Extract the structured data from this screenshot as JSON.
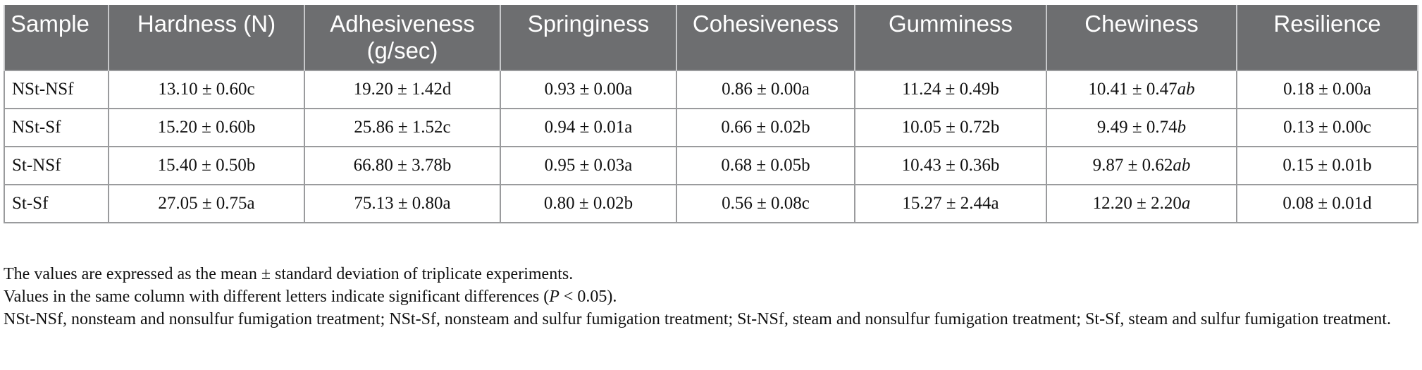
{
  "table": {
    "headers": [
      "Sample",
      "Hardness (N)",
      "Adhesiveness (g/sec)",
      "Springiness",
      "Cohesiveness",
      "Gumminess",
      "Chewiness",
      "Resilience"
    ],
    "rows": [
      {
        "sample": "NSt-NSf",
        "hardness": "13.10 ± 0.60c",
        "adhesiveness": "19.20 ± 1.42d",
        "springiness": "0.93 ± 0.00a",
        "cohesiveness": "0.86 ± 0.00a",
        "gumminess": "11.24 ± 0.49b",
        "chewiness_value": "10.41 ± 0.47",
        "chewiness_letter": "ab",
        "resilience": "0.18 ± 0.00a"
      },
      {
        "sample": "NSt-Sf",
        "hardness": "15.20 ± 0.60b",
        "adhesiveness": "25.86 ± 1.52c",
        "springiness": "0.94 ± 0.01a",
        "cohesiveness": "0.66 ± 0.02b",
        "gumminess": "10.05 ± 0.72b",
        "chewiness_value": "9.49 ± 0.74",
        "chewiness_letter": "b",
        "resilience": "0.13 ± 0.00c"
      },
      {
        "sample": "St-NSf",
        "hardness": "15.40 ± 0.50b",
        "adhesiveness": "66.80 ± 3.78b",
        "springiness": "0.95 ± 0.03a",
        "cohesiveness": "0.68 ± 0.05b",
        "gumminess": "10.43 ± 0.36b",
        "chewiness_value": "9.87 ± 0.62",
        "chewiness_letter": "ab",
        "resilience": "0.15 ± 0.01b"
      },
      {
        "sample": "St-Sf",
        "hardness": "27.05 ± 0.75a",
        "adhesiveness": "75.13 ± 0.80a",
        "springiness": "0.80 ± 0.02b",
        "cohesiveness": "0.56 ± 0.08c",
        "gumminess": "15.27 ± 2.44a",
        "chewiness_value": "12.20 ± 2.20",
        "chewiness_letter": "a",
        "resilience": "0.08 ± 0.01d"
      }
    ]
  },
  "notes": {
    "line1": "The values are expressed as the mean ± standard deviation of triplicate experiments.",
    "line2_before": "Values in the same column with different letters indicate significant differences (",
    "line2_p": "P",
    "line2_after": " < 0.05).",
    "line3": "NSt-NSf, nonsteam and nonsulfur fumigation treatment; NSt-Sf, nonsteam and sulfur fumigation treatment; St-NSf, steam and nonsulfur fumigation treatment; St-Sf, steam and sulfur fumigation treatment."
  },
  "colors": {
    "header_bg": "#6d6e70",
    "header_text": "#ffffff",
    "border": "#9a9b9d"
  }
}
